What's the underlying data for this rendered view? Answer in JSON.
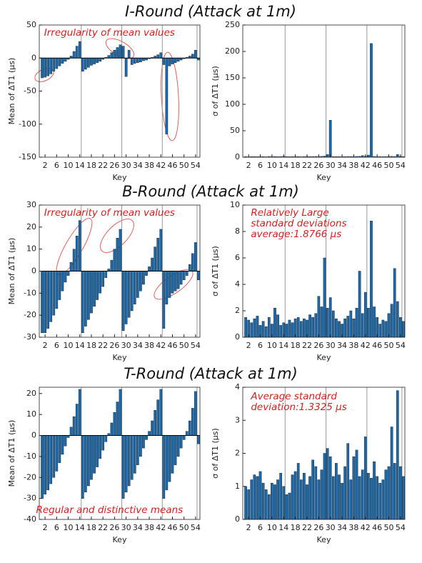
{
  "chart_data": [
    {
      "type": "bar",
      "title": "I-Round (Attack at 1m)",
      "ylabel": "Mean of ΔT1 (μs)",
      "xlabel": "Key",
      "color": "#1a6aad",
      "annotations": [
        "Irregularity of mean values"
      ],
      "x": [
        1,
        2,
        3,
        4,
        5,
        6,
        7,
        8,
        9,
        10,
        11,
        12,
        13,
        14,
        15,
        16,
        17,
        18,
        19,
        20,
        21,
        22,
        23,
        24,
        25,
        26,
        27,
        28,
        29,
        30,
        31,
        32,
        33,
        34,
        35,
        36,
        37,
        38,
        39,
        40,
        41,
        42,
        43,
        44,
        45,
        46,
        47,
        48,
        49,
        50,
        51,
        52,
        53,
        54,
        55
      ],
      "values": [
        -30,
        -29,
        -27,
        -24,
        -20,
        -16,
        -12,
        -8,
        -5,
        -2,
        3,
        10,
        18,
        25,
        -20,
        -17,
        -14,
        -11,
        -9,
        -7,
        -5,
        -2,
        1,
        4,
        8,
        12,
        16,
        20,
        18,
        -28,
        12,
        -10,
        -8,
        -7,
        -6,
        -4,
        -3,
        -1,
        1,
        3,
        5,
        8,
        -10,
        -115,
        -12,
        -9,
        -7,
        -5,
        -3,
        -1,
        1,
        3,
        6,
        12,
        -3
      ],
      "xlim": [
        0,
        55.5
      ],
      "xticks": [
        2,
        6,
        10,
        14,
        18,
        22,
        26,
        30,
        34,
        38,
        42,
        46,
        50,
        54
      ],
      "ylim": [
        -150,
        50
      ],
      "yticks": [
        -150,
        -100,
        -50,
        0,
        50
      ],
      "vlines": [
        14.5,
        28.5,
        42.5,
        54.5
      ]
    },
    {
      "type": "bar",
      "ylabel": "σ of ΔT1 (μs)",
      "xlabel": "Key",
      "color": "#1a6aad",
      "x": [
        1,
        2,
        3,
        4,
        5,
        6,
        7,
        8,
        9,
        10,
        11,
        12,
        13,
        14,
        15,
        16,
        17,
        18,
        19,
        20,
        21,
        22,
        23,
        24,
        25,
        26,
        27,
        28,
        29,
        30,
        31,
        32,
        33,
        34,
        35,
        36,
        37,
        38,
        39,
        40,
        41,
        42,
        43,
        44,
        45,
        46,
        47,
        48,
        49,
        50,
        51,
        52,
        53,
        54,
        55
      ],
      "values": [
        1,
        0.8,
        1.2,
        1,
        0.9,
        1.1,
        1,
        0.8,
        1.3,
        1,
        1.2,
        0.9,
        1,
        1.5,
        1,
        0.9,
        1.1,
        1,
        1.2,
        0.8,
        1,
        1.3,
        1,
        1.1,
        1.4,
        1.2,
        1.5,
        2,
        5,
        70,
        1.2,
        1,
        1.1,
        0.9,
        1,
        1.3,
        1.2,
        1,
        1.4,
        1.5,
        3,
        1.5,
        4,
        215,
        1.3,
        1,
        1.2,
        0.9,
        1,
        1.2,
        1.5,
        1.3,
        5,
        1.4,
        1
      ],
      "xlim": [
        0,
        55.5
      ],
      "xticks": [
        2,
        6,
        10,
        14,
        18,
        22,
        26,
        30,
        34,
        38,
        42,
        46,
        50,
        54
      ],
      "ylim": [
        0,
        250
      ],
      "yticks": [
        0,
        50,
        100,
        150,
        200,
        250
      ],
      "vlines": [
        14.5,
        28.5,
        42.5,
        54.5
      ]
    },
    {
      "type": "bar",
      "title": "B-Round (Attack at 1m)",
      "ylabel": "Mean of ΔT1 (μs)",
      "xlabel": "Key",
      "color": "#1a6aad",
      "annotations": [
        "Irregularity of mean values"
      ],
      "x": [
        1,
        2,
        3,
        4,
        5,
        6,
        7,
        8,
        9,
        10,
        11,
        12,
        13,
        14,
        15,
        16,
        17,
        18,
        19,
        20,
        21,
        22,
        23,
        24,
        25,
        26,
        27,
        28,
        29,
        30,
        31,
        32,
        33,
        34,
        35,
        36,
        37,
        38,
        39,
        40,
        41,
        42,
        43,
        44,
        45,
        46,
        47,
        48,
        49,
        50,
        51,
        52,
        53,
        54,
        55
      ],
      "values": [
        -28,
        -28,
        -26,
        -23,
        -20,
        -17,
        -13,
        -9,
        -5,
        -2,
        4,
        10,
        16,
        23,
        -28,
        -25,
        -22,
        -19,
        -16,
        -13,
        -10,
        -7,
        -3,
        1,
        5,
        10,
        15,
        19,
        -27,
        -24,
        -21,
        -18,
        -15,
        -12,
        -9,
        -6,
        -2,
        2,
        6,
        11,
        15,
        19,
        -26,
        -15,
        -12,
        -10,
        -9,
        -8,
        -6,
        -4,
        -2,
        3,
        8,
        13,
        -4
      ],
      "xlim": [
        0,
        55.5
      ],
      "xticks": [
        2,
        6,
        10,
        14,
        18,
        22,
        26,
        30,
        34,
        38,
        42,
        46,
        50,
        54
      ],
      "ylim": [
        -30,
        30
      ],
      "yticks": [
        -30,
        -20,
        -10,
        0,
        10,
        20,
        30
      ],
      "vlines": [
        14.5,
        28.5,
        42.5,
        54.5
      ]
    },
    {
      "type": "bar",
      "ylabel": "σ of ΔT1 (μs)",
      "xlabel": "Key",
      "color": "#1a6aad",
      "annotations": [
        "Relatively Large",
        "standard deviations",
        "average:1.8766 μs"
      ],
      "x": [
        1,
        2,
        3,
        4,
        5,
        6,
        7,
        8,
        9,
        10,
        11,
        12,
        13,
        14,
        15,
        16,
        17,
        18,
        19,
        20,
        21,
        22,
        23,
        24,
        25,
        26,
        27,
        28,
        29,
        30,
        31,
        32,
        33,
        34,
        35,
        36,
        37,
        38,
        39,
        40,
        41,
        42,
        43,
        44,
        45,
        46,
        47,
        48,
        49,
        50,
        51,
        52,
        53,
        54,
        55
      ],
      "values": [
        1.5,
        1.3,
        1.1,
        1.4,
        1.6,
        0.9,
        1.2,
        0.8,
        1.5,
        1,
        2.2,
        1.7,
        0.9,
        1.1,
        1,
        1.3,
        1.1,
        1.4,
        1.5,
        1.2,
        1.4,
        1.3,
        1.7,
        1.5,
        1.8,
        3.1,
        2.3,
        6,
        2.2,
        3,
        2,
        1.4,
        1.2,
        1,
        1.4,
        1.6,
        2,
        1.4,
        2.2,
        5,
        1.8,
        3.4,
        2.2,
        8.8,
        2.3,
        1.5,
        1,
        1.3,
        1.2,
        1.8,
        2.5,
        5.2,
        2.7,
        1.5,
        1.2
      ],
      "xlim": [
        0,
        55.5
      ],
      "xticks": [
        2,
        6,
        10,
        14,
        18,
        22,
        26,
        30,
        34,
        38,
        42,
        46,
        50,
        54
      ],
      "ylim": [
        0,
        10
      ],
      "yticks": [
        0,
        2,
        4,
        6,
        8,
        10
      ],
      "vlines": [
        14.5,
        28.5,
        42.5,
        54.5
      ]
    },
    {
      "type": "bar",
      "title": "T-Round (Attack at 1m)",
      "ylabel": "Mean of ΔT1 (μs)",
      "xlabel": "Key",
      "color": "#1a6aad",
      "annotations": [
        "Regular and distinctive means"
      ],
      "x": [
        1,
        2,
        3,
        4,
        5,
        6,
        7,
        8,
        9,
        10,
        11,
        12,
        13,
        14,
        15,
        16,
        17,
        18,
        19,
        20,
        21,
        22,
        23,
        24,
        25,
        26,
        27,
        28,
        29,
        30,
        31,
        32,
        33,
        34,
        35,
        36,
        37,
        38,
        39,
        40,
        41,
        42,
        43,
        44,
        45,
        46,
        47,
        48,
        49,
        50,
        51,
        52,
        53,
        54,
        55
      ],
      "values": [
        -30,
        -28,
        -26,
        -23,
        -20,
        -17,
        -13,
        -9,
        -5,
        -1,
        4,
        9,
        15,
        22,
        -30,
        -27,
        -24,
        -21,
        -18,
        -15,
        -11,
        -7,
        -3,
        1,
        6,
        11,
        16,
        22,
        -30,
        -27,
        -24,
        -21,
        -18,
        -14,
        -10,
        -6,
        -2,
        2,
        7,
        12,
        17,
        22,
        -30,
        -26,
        -22,
        -18,
        -14,
        -10,
        -6,
        -2,
        2,
        7,
        13,
        21,
        -4
      ],
      "xlim": [
        0,
        55.5
      ],
      "xticks": [
        2,
        6,
        10,
        14,
        18,
        22,
        26,
        30,
        34,
        38,
        42,
        46,
        50,
        54
      ],
      "ylim": [
        -40,
        23
      ],
      "yticks": [
        -40,
        -30,
        -20,
        -10,
        0,
        10,
        20
      ],
      "vlines": [
        14.5,
        28.5,
        42.5,
        54.5
      ]
    },
    {
      "type": "bar",
      "ylabel": "σ of ΔT1 (μs)",
      "xlabel": "Key",
      "color": "#1a6aad",
      "annotations": [
        "Average standard",
        "deviation:1.3325 μs"
      ],
      "x": [
        1,
        2,
        3,
        4,
        5,
        6,
        7,
        8,
        9,
        10,
        11,
        12,
        13,
        14,
        15,
        16,
        17,
        18,
        19,
        20,
        21,
        22,
        23,
        24,
        25,
        26,
        27,
        28,
        29,
        30,
        31,
        32,
        33,
        34,
        35,
        36,
        37,
        38,
        39,
        40,
        41,
        42,
        43,
        44,
        45,
        46,
        47,
        48,
        49,
        50,
        51,
        52,
        53,
        54,
        55
      ],
      "values": [
        1,
        0.9,
        1.2,
        1.35,
        1.3,
        1.45,
        1.1,
        0.9,
        0.75,
        1.1,
        1.05,
        1.2,
        1.4,
        1,
        0.75,
        0.8,
        1.35,
        1.45,
        1.7,
        1.2,
        1.4,
        1.05,
        1.3,
        1.8,
        1.6,
        1.2,
        1.5,
        2,
        2.15,
        1.9,
        1.3,
        1.7,
        1.35,
        1.1,
        1.6,
        2.3,
        1.2,
        1.9,
        2.1,
        1.3,
        1.5,
        2.5,
        1.4,
        1.25,
        1.75,
        1.3,
        1.1,
        1.2,
        1.5,
        1.6,
        2.8,
        1.7,
        3.9,
        1.6,
        1.3
      ],
      "xlim": [
        0,
        55.5
      ],
      "xticks": [
        2,
        6,
        10,
        14,
        18,
        22,
        26,
        30,
        34,
        38,
        42,
        46,
        50,
        54
      ],
      "ylim": [
        0,
        4
      ],
      "yticks": [
        0,
        1,
        2,
        3,
        4
      ],
      "vlines": [
        14.5,
        28.5,
        42.5,
        54.5
      ]
    }
  ]
}
